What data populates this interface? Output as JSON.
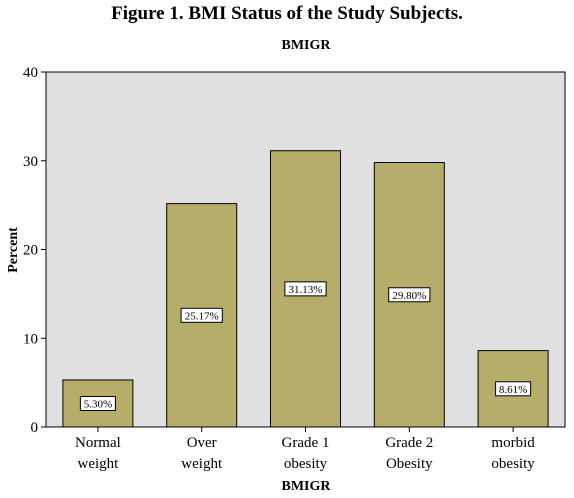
{
  "figure_title": "Figure 1. BMI Status of the Study Subjects.",
  "colors": {
    "plot_bg": "#e0e0e0",
    "bar_fill": "#b5ad69",
    "bar_stroke": "#000000"
  },
  "chart_data": {
    "type": "bar",
    "title": "BMIGR",
    "xlabel": "BMIGR",
    "ylabel": "Percent",
    "ylim": [
      0,
      40
    ],
    "yticks": [
      0,
      10,
      20,
      30,
      40
    ],
    "grid": false,
    "categories": [
      [
        "Normal",
        "weight"
      ],
      [
        "Over",
        "weight"
      ],
      [
        "Grade 1",
        "obesity"
      ],
      [
        "Grade 2",
        "Obesity"
      ],
      [
        "morbid",
        "obesity"
      ]
    ],
    "values": [
      5.3,
      25.17,
      31.13,
      29.8,
      8.61
    ],
    "data_labels": [
      "5.30%",
      "25.17%",
      "31.13%",
      "29.80%",
      "8.61%"
    ]
  }
}
